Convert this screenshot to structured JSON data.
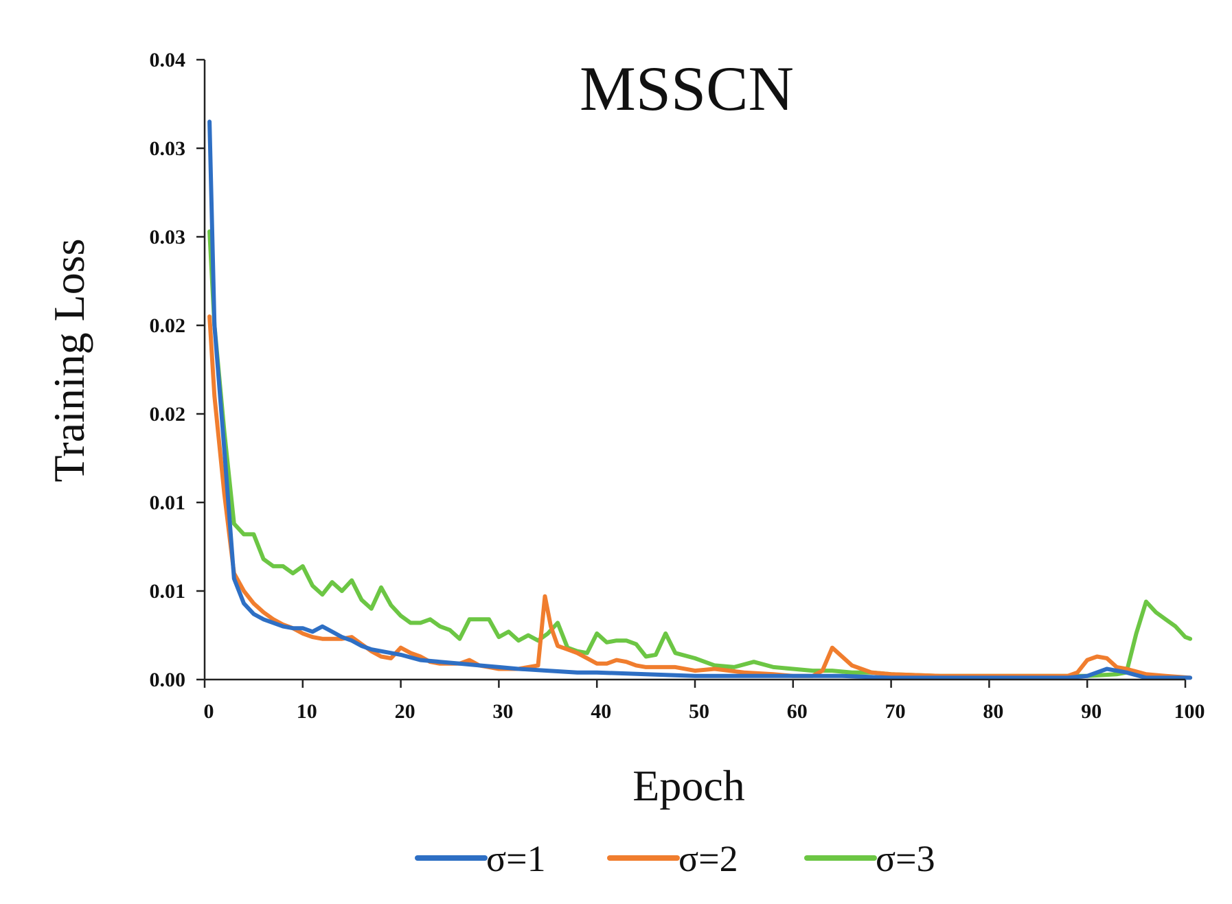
{
  "chart_data": {
    "type": "line",
    "title": "MSSCN",
    "xlabel": "Epoch",
    "ylabel": "Training Loss",
    "xlim": [
      0,
      100
    ],
    "ylim": [
      0,
      0.035
    ],
    "x_ticks": [
      0,
      10,
      20,
      30,
      40,
      50,
      60,
      70,
      80,
      90,
      100
    ],
    "x_tick_labels": [
      "0",
      "10",
      "20",
      "30",
      "40",
      "50",
      "60",
      "70",
      "80",
      "90",
      "100"
    ],
    "y_ticks": [
      0,
      0.005,
      0.01,
      0.015,
      0.02,
      0.025,
      0.03,
      0.035
    ],
    "y_tick_labels": [
      "0.00",
      "0.01",
      "0.01",
      "0.02",
      "0.02",
      "0.03",
      "0.03",
      "0.04"
    ],
    "grid": false,
    "legend_position": "bottom",
    "series": [
      {
        "name": "σ=1",
        "legend_label": "σ=1",
        "color": "#2E6FC4",
        "x": [
          0.5,
          1,
          2,
          3,
          4,
          5,
          6,
          7,
          8,
          9,
          10,
          11,
          12,
          13,
          14,
          15,
          16,
          17,
          18,
          19,
          20,
          22,
          24,
          26,
          28,
          30,
          32,
          35,
          38,
          40,
          45,
          50,
          55,
          60,
          65,
          70,
          75,
          80,
          85,
          88,
          90,
          92,
          94,
          96,
          98,
          100.5
        ],
        "values": [
          0.0315,
          0.02,
          0.013,
          0.0057,
          0.0043,
          0.0037,
          0.0034,
          0.0032,
          0.003,
          0.0029,
          0.0029,
          0.0027,
          0.003,
          0.0027,
          0.0024,
          0.0022,
          0.0019,
          0.0017,
          0.0016,
          0.0015,
          0.0014,
          0.0011,
          0.001,
          0.0009,
          0.0008,
          0.0007,
          0.0006,
          0.0005,
          0.0004,
          0.0004,
          0.0003,
          0.0002,
          0.0002,
          0.0002,
          0.0002,
          0.0001,
          0.0001,
          0.0001,
          0.0001,
          0.0001,
          0.0002,
          0.0006,
          0.0004,
          0.0001,
          0.0001,
          0.0001
        ]
      },
      {
        "name": "σ=2",
        "legend_label": "σ=2",
        "color": "#F07D2E",
        "x": [
          0.5,
          1,
          2,
          3,
          4,
          5,
          6,
          7,
          8,
          9,
          10,
          11,
          12,
          13,
          14,
          15,
          16,
          17,
          18,
          19,
          20,
          21,
          22,
          23,
          24,
          25,
          26,
          27,
          28,
          29,
          30,
          31,
          32,
          33,
          34,
          34.7,
          35.3,
          36,
          37,
          38,
          39,
          40,
          41,
          42,
          43,
          44,
          45,
          46,
          47,
          48,
          50,
          52,
          55,
          58,
          60,
          62,
          63,
          64,
          65,
          66,
          68,
          70,
          75,
          80,
          85,
          88,
          89,
          90,
          91,
          92,
          93,
          94,
          96,
          98,
          100.5
        ],
        "values": [
          0.0205,
          0.016,
          0.0105,
          0.006,
          0.005,
          0.0043,
          0.0038,
          0.0034,
          0.0031,
          0.0029,
          0.0026,
          0.0024,
          0.0023,
          0.0023,
          0.0023,
          0.0024,
          0.002,
          0.0016,
          0.0013,
          0.0012,
          0.0018,
          0.0015,
          0.0013,
          0.001,
          0.0009,
          0.0009,
          0.0009,
          0.0011,
          0.0008,
          0.0007,
          0.0006,
          0.0006,
          0.0006,
          0.0007,
          0.0008,
          0.0047,
          0.003,
          0.0019,
          0.0017,
          0.0015,
          0.0012,
          0.0009,
          0.0009,
          0.0011,
          0.001,
          0.0008,
          0.0007,
          0.0007,
          0.0007,
          0.0007,
          0.0005,
          0.0006,
          0.0004,
          0.0003,
          0.0002,
          0.0002,
          0.0005,
          0.0018,
          0.0013,
          0.0008,
          0.0004,
          0.0003,
          0.0002,
          0.0002,
          0.0002,
          0.0002,
          0.0004,
          0.0011,
          0.0013,
          0.0012,
          0.0007,
          0.0006,
          0.0003,
          0.0002,
          0.0001
        ]
      },
      {
        "name": "σ=3",
        "legend_label": "σ=3",
        "color": "#6CC644",
        "x": [
          0.5,
          1,
          2,
          3,
          4,
          5,
          6,
          7,
          8,
          9,
          10,
          11,
          12,
          13,
          14,
          15,
          16,
          17,
          18,
          19,
          20,
          21,
          22,
          23,
          24,
          25,
          26,
          27,
          28,
          29,
          30,
          31,
          32,
          33,
          34,
          35,
          36,
          37,
          38,
          39,
          40,
          41,
          42,
          43,
          44,
          45,
          46,
          47,
          48,
          50,
          52,
          54,
          56,
          58,
          60,
          62,
          64,
          66,
          68,
          70,
          75,
          80,
          85,
          90,
          93,
          94,
          95,
          96,
          97,
          98,
          99,
          100,
          100.5
        ],
        "values": [
          0.0253,
          0.02,
          0.014,
          0.0088,
          0.0082,
          0.0082,
          0.0068,
          0.0064,
          0.0064,
          0.006,
          0.0064,
          0.0053,
          0.0048,
          0.0055,
          0.005,
          0.0056,
          0.0045,
          0.004,
          0.0052,
          0.0042,
          0.0036,
          0.0032,
          0.0032,
          0.0034,
          0.003,
          0.0028,
          0.0023,
          0.0034,
          0.0034,
          0.0034,
          0.0024,
          0.0027,
          0.0022,
          0.0025,
          0.0022,
          0.0026,
          0.0032,
          0.0018,
          0.0016,
          0.0015,
          0.0026,
          0.0021,
          0.0022,
          0.0022,
          0.002,
          0.0013,
          0.0014,
          0.0026,
          0.0015,
          0.0012,
          0.0008,
          0.0007,
          0.001,
          0.0007,
          0.0006,
          0.0005,
          0.0005,
          0.0004,
          0.0004,
          0.0003,
          0.0002,
          0.0002,
          0.0002,
          0.0002,
          0.0003,
          0.0004,
          0.0026,
          0.0044,
          0.0038,
          0.0034,
          0.003,
          0.0024,
          0.0023
        ]
      }
    ]
  }
}
